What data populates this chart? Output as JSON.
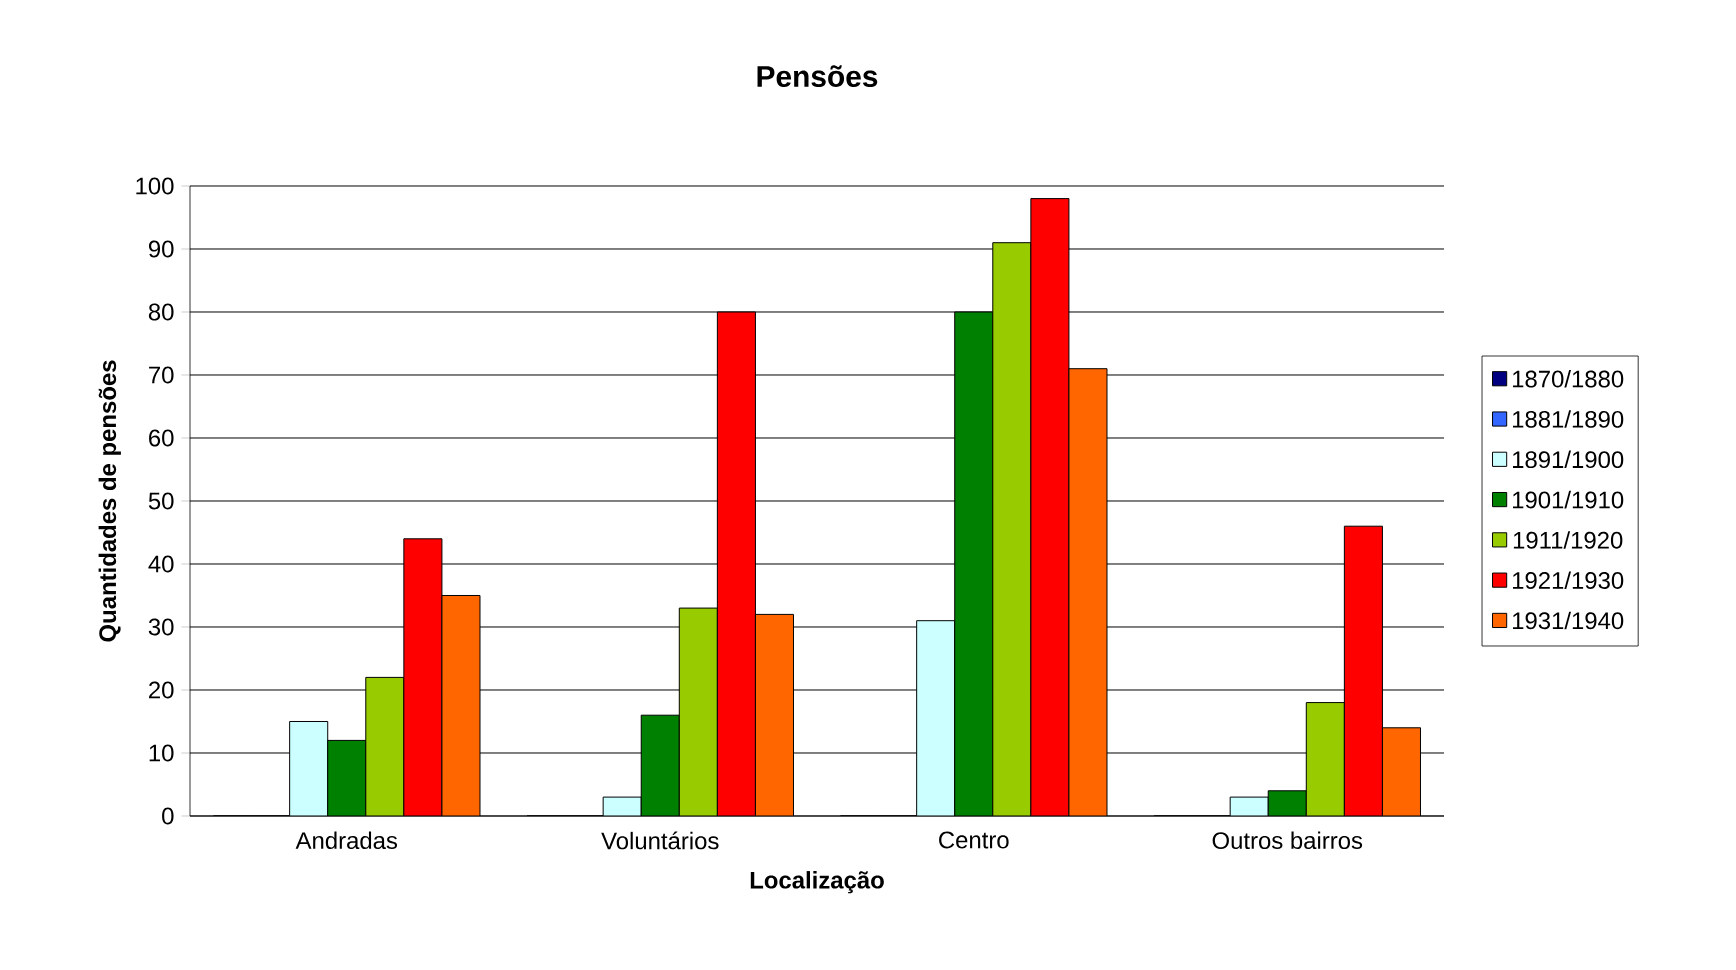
{
  "chart_data": {
    "type": "bar",
    "title": "Pensões",
    "xlabel": "Localização",
    "ylabel": "Quantidades de pensões",
    "categories": [
      "Andradas",
      "Voluntários",
      "Centro",
      "Outros bairros"
    ],
    "series": [
      {
        "name": "1870/1880",
        "color": "#000080",
        "values": [
          0,
          0,
          0,
          0
        ]
      },
      {
        "name": "1881/1890",
        "color": "#3366ff",
        "values": [
          0,
          0,
          0,
          0
        ]
      },
      {
        "name": "1891/1900",
        "color": "#ccffff",
        "values": [
          15,
          3,
          31,
          3
        ]
      },
      {
        "name": "1901/1910",
        "color": "#008000",
        "values": [
          12,
          16,
          80,
          4
        ]
      },
      {
        "name": "1911/1920",
        "color": "#99cc00",
        "values": [
          22,
          33,
          91,
          18
        ]
      },
      {
        "name": "1921/1930",
        "color": "#ff0000",
        "values": [
          44,
          80,
          98,
          46
        ]
      },
      {
        "name": "1931/1940",
        "color": "#ff6600",
        "values": [
          35,
          32,
          71,
          14
        ]
      }
    ],
    "ylim": [
      0,
      100
    ],
    "yticks": [
      0,
      10,
      20,
      30,
      40,
      50,
      60,
      70,
      80,
      90,
      100
    ],
    "grid": "y",
    "legend": "right"
  }
}
